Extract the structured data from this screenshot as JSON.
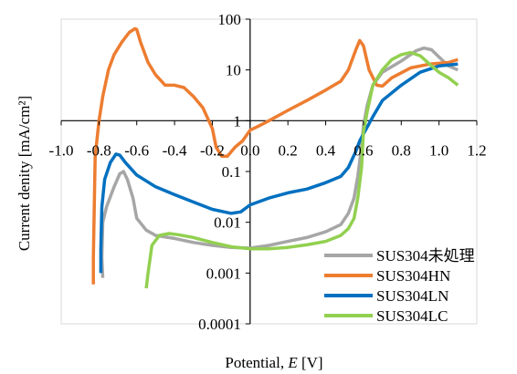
{
  "chart_data": {
    "type": "line",
    "title": "",
    "xlabel_prefix": "Potential, ",
    "xlabel_var": "E",
    "xlabel_suffix": " [V]",
    "ylabel": "Current denity [mA/cm²]",
    "xlim": [
      -1.0,
      1.2
    ],
    "ylim": [
      0.0001,
      100
    ],
    "yscale": "log",
    "grid": false,
    "legend_position": "bottom-right",
    "x_ticks": [
      "-1.0",
      "-0.8",
      "-0.6",
      "-0.4",
      "-0.2",
      "0.0",
      "0.2",
      "0.4",
      "0.6",
      "0.8",
      "1.0",
      "1.2"
    ],
    "y_ticks": [
      "100",
      "10",
      "1",
      "0.1",
      "0.01",
      "0.001",
      "0.0001"
    ],
    "series": [
      {
        "name": "SUS304未処理",
        "color": "#a6a6a6",
        "points": [
          [
            -0.78,
            0.0008
          ],
          [
            -0.785,
            0.002
          ],
          [
            -0.78,
            0.01
          ],
          [
            -0.76,
            0.02
          ],
          [
            -0.72,
            0.05
          ],
          [
            -0.69,
            0.09
          ],
          [
            -0.67,
            0.1
          ],
          [
            -0.65,
            0.07
          ],
          [
            -0.62,
            0.03
          ],
          [
            -0.6,
            0.012
          ],
          [
            -0.55,
            0.007
          ],
          [
            -0.5,
            0.0055
          ],
          [
            -0.4,
            0.0048
          ],
          [
            -0.3,
            0.004
          ],
          [
            -0.2,
            0.0035
          ],
          [
            -0.1,
            0.0032
          ],
          [
            0.0,
            0.0031
          ],
          [
            0.1,
            0.0035
          ],
          [
            0.2,
            0.0042
          ],
          [
            0.3,
            0.005
          ],
          [
            0.4,
            0.0065
          ],
          [
            0.48,
            0.009
          ],
          [
            0.52,
            0.015
          ],
          [
            0.55,
            0.03
          ],
          [
            0.57,
            0.08
          ],
          [
            0.59,
            0.3
          ],
          [
            0.6,
            0.8
          ],
          [
            0.62,
            2
          ],
          [
            0.65,
            5
          ],
          [
            0.7,
            9
          ],
          [
            0.8,
            15
          ],
          [
            0.88,
            24
          ],
          [
            0.92,
            27
          ],
          [
            0.96,
            25
          ],
          [
            1.0,
            18
          ],
          [
            1.05,
            12
          ],
          [
            1.1,
            10
          ]
        ]
      },
      {
        "name": "SUS304HN",
        "color": "#ed7d31",
        "points": [
          [
            -0.83,
            0.0006
          ],
          [
            -0.83,
            0.002
          ],
          [
            -0.825,
            0.02
          ],
          [
            -0.82,
            0.2
          ],
          [
            -0.8,
            1
          ],
          [
            -0.78,
            3
          ],
          [
            -0.75,
            10
          ],
          [
            -0.72,
            20
          ],
          [
            -0.68,
            35
          ],
          [
            -0.64,
            55
          ],
          [
            -0.61,
            65
          ],
          [
            -0.6,
            63
          ],
          [
            -0.58,
            35
          ],
          [
            -0.54,
            14
          ],
          [
            -0.5,
            8
          ],
          [
            -0.45,
            5
          ],
          [
            -0.4,
            5
          ],
          [
            -0.35,
            4.5
          ],
          [
            -0.3,
            3
          ],
          [
            -0.25,
            1.8
          ],
          [
            -0.2,
            0.7
          ],
          [
            -0.18,
            0.3
          ],
          [
            -0.15,
            0.2
          ],
          [
            -0.12,
            0.2
          ],
          [
            -0.08,
            0.3
          ],
          [
            -0.04,
            0.4
          ],
          [
            0.0,
            0.65
          ],
          [
            0.05,
            0.8
          ],
          [
            0.1,
            1
          ],
          [
            0.2,
            1.6
          ],
          [
            0.3,
            2.5
          ],
          [
            0.4,
            4
          ],
          [
            0.48,
            6
          ],
          [
            0.52,
            10
          ],
          [
            0.56,
            25
          ],
          [
            0.58,
            38
          ],
          [
            0.6,
            30
          ],
          [
            0.63,
            10
          ],
          [
            0.67,
            5
          ],
          [
            0.7,
            4.8
          ],
          [
            0.75,
            7
          ],
          [
            0.85,
            11
          ],
          [
            0.95,
            13
          ],
          [
            1.05,
            14
          ],
          [
            1.1,
            16
          ]
        ]
      },
      {
        "name": "SUS304LN",
        "color": "#0070c0",
        "points": [
          [
            -0.79,
            0.001
          ],
          [
            -0.79,
            0.003
          ],
          [
            -0.785,
            0.02
          ],
          [
            -0.77,
            0.07
          ],
          [
            -0.74,
            0.15
          ],
          [
            -0.71,
            0.22
          ],
          [
            -0.69,
            0.21
          ],
          [
            -0.66,
            0.15
          ],
          [
            -0.6,
            0.085
          ],
          [
            -0.5,
            0.05
          ],
          [
            -0.4,
            0.035
          ],
          [
            -0.3,
            0.025
          ],
          [
            -0.2,
            0.018
          ],
          [
            -0.1,
            0.015
          ],
          [
            -0.05,
            0.016
          ],
          [
            0.0,
            0.022
          ],
          [
            0.1,
            0.03
          ],
          [
            0.2,
            0.038
          ],
          [
            0.3,
            0.045
          ],
          [
            0.4,
            0.06
          ],
          [
            0.48,
            0.08
          ],
          [
            0.52,
            0.12
          ],
          [
            0.56,
            0.25
          ],
          [
            0.58,
            0.4
          ],
          [
            0.6,
            0.55
          ],
          [
            0.65,
            1.2
          ],
          [
            0.7,
            2.5
          ],
          [
            0.8,
            5
          ],
          [
            0.9,
            9
          ],
          [
            1.0,
            12
          ],
          [
            1.1,
            13
          ]
        ]
      },
      {
        "name": "SUS304LC",
        "color": "#92d050",
        "points": [
          [
            -0.55,
            0.0005
          ],
          [
            -0.54,
            0.001
          ],
          [
            -0.52,
            0.0035
          ],
          [
            -0.48,
            0.0055
          ],
          [
            -0.43,
            0.006
          ],
          [
            -0.38,
            0.0057
          ],
          [
            -0.3,
            0.005
          ],
          [
            -0.2,
            0.004
          ],
          [
            -0.1,
            0.0033
          ],
          [
            0.0,
            0.003
          ],
          [
            0.1,
            0.003
          ],
          [
            0.2,
            0.0032
          ],
          [
            0.3,
            0.0036
          ],
          [
            0.4,
            0.0042
          ],
          [
            0.48,
            0.0055
          ],
          [
            0.52,
            0.0075
          ],
          [
            0.55,
            0.012
          ],
          [
            0.57,
            0.03
          ],
          [
            0.59,
            0.12
          ],
          [
            0.6,
            0.6
          ],
          [
            0.62,
            1.5
          ],
          [
            0.65,
            5
          ],
          [
            0.7,
            10
          ],
          [
            0.75,
            16
          ],
          [
            0.8,
            20
          ],
          [
            0.85,
            22
          ],
          [
            0.9,
            19
          ],
          [
            0.95,
            13
          ],
          [
            1.0,
            9
          ],
          [
            1.05,
            7
          ],
          [
            1.1,
            5
          ]
        ]
      }
    ]
  }
}
